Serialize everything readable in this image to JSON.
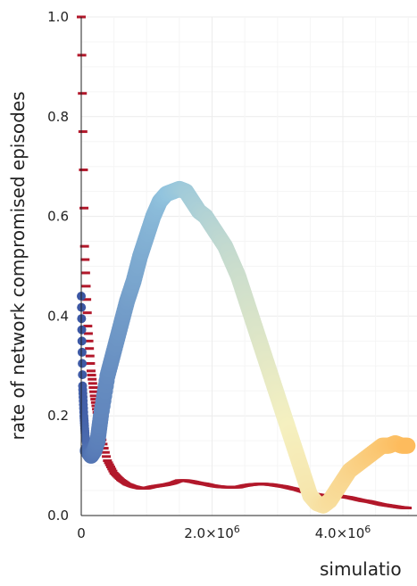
{
  "chart_data": {
    "type": "scatter",
    "title": "",
    "ylabel": "rate of network compromised episodes",
    "xlabel": "simulatio",
    "xlim": [
      0,
      5000000
    ],
    "ylim": [
      0,
      1.0
    ],
    "grid": true,
    "legend": "none",
    "y_ticks": [
      {
        "value": 0.0,
        "label": "0.0"
      },
      {
        "value": 0.2,
        "label": "0.2"
      },
      {
        "value": 0.4,
        "label": "0.4"
      },
      {
        "value": 0.6,
        "label": "0.6"
      },
      {
        "value": 0.8,
        "label": "0.8"
      },
      {
        "value": 1.0,
        "label": "1.0"
      }
    ],
    "x_ticks": [
      {
        "value": 0,
        "label": "0",
        "exp": ""
      },
      {
        "value": 2000000,
        "label": "2.0×10",
        "exp": "6"
      },
      {
        "value": 4000000,
        "label": "4.0×10",
        "exp": "6"
      }
    ],
    "series": [
      {
        "color_start": "#3b56a3",
        "color_mid": "#f5f0c0",
        "color_end": "#fdbb5c",
        "x": [
          0,
          20000,
          40000,
          60000,
          100000,
          150000,
          200000,
          250000,
          300000,
          400000,
          500000,
          600000,
          700000,
          800000,
          900000,
          1000000,
          1100000,
          1200000,
          1300000,
          1400000,
          1500000,
          1600000,
          1700000,
          1800000,
          1900000,
          2000000,
          2100000,
          2200000,
          2300000,
          2400000,
          2500000,
          2600000,
          2700000,
          2800000,
          2900000,
          3000000,
          3100000,
          3200000,
          3300000,
          3400000,
          3500000,
          3600000,
          3700000,
          3800000,
          3900000,
          4000000,
          4100000,
          4200000,
          4300000,
          4400000,
          4500000,
          4600000,
          4700000,
          4800000,
          4900000,
          5000000
        ],
        "y": [
          0.44,
          0.26,
          0.2,
          0.16,
          0.13,
          0.12,
          0.13,
          0.15,
          0.2,
          0.28,
          0.33,
          0.38,
          0.43,
          0.47,
          0.52,
          0.56,
          0.6,
          0.63,
          0.645,
          0.65,
          0.655,
          0.65,
          0.63,
          0.61,
          0.6,
          0.58,
          0.56,
          0.54,
          0.51,
          0.48,
          0.44,
          0.4,
          0.36,
          0.32,
          0.28,
          0.24,
          0.2,
          0.16,
          0.12,
          0.08,
          0.04,
          0.025,
          0.02,
          0.03,
          0.05,
          0.07,
          0.09,
          0.1,
          0.11,
          0.12,
          0.13,
          0.14,
          0.14,
          0.145,
          0.14,
          0.14
        ]
      },
      {
        "color": "#b2182b",
        "x": [
          0,
          50000,
          100000,
          150000,
          200000,
          250000,
          300000,
          400000,
          500000,
          600000,
          700000,
          800000,
          900000,
          1000000,
          1100000,
          1200000,
          1300000,
          1400000,
          1500000,
          1600000,
          1700000,
          1800000,
          1900000,
          2000000,
          2100000,
          2200000,
          2300000,
          2400000,
          2500000,
          2600000,
          2700000,
          2800000,
          2900000,
          3000000,
          3100000,
          3200000,
          3300000,
          3400000,
          3500000,
          3600000,
          3700000,
          3800000,
          3900000,
          4000000,
          4100000,
          4200000,
          4300000,
          4400000,
          4500000,
          4600000,
          4700000,
          4800000,
          4900000,
          5000000
        ],
        "y": [
          1.0,
          0.54,
          0.38,
          0.29,
          0.24,
          0.2,
          0.16,
          0.11,
          0.085,
          0.072,
          0.063,
          0.058,
          0.055,
          0.055,
          0.058,
          0.06,
          0.062,
          0.065,
          0.07,
          0.07,
          0.068,
          0.065,
          0.063,
          0.06,
          0.058,
          0.057,
          0.057,
          0.057,
          0.06,
          0.062,
          0.063,
          0.063,
          0.062,
          0.06,
          0.058,
          0.055,
          0.052,
          0.048,
          0.045,
          0.042,
          0.04,
          0.04,
          0.04,
          0.038,
          0.036,
          0.033,
          0.03,
          0.028,
          0.025,
          0.022,
          0.02,
          0.018,
          0.016,
          0.015
        ]
      }
    ]
  }
}
